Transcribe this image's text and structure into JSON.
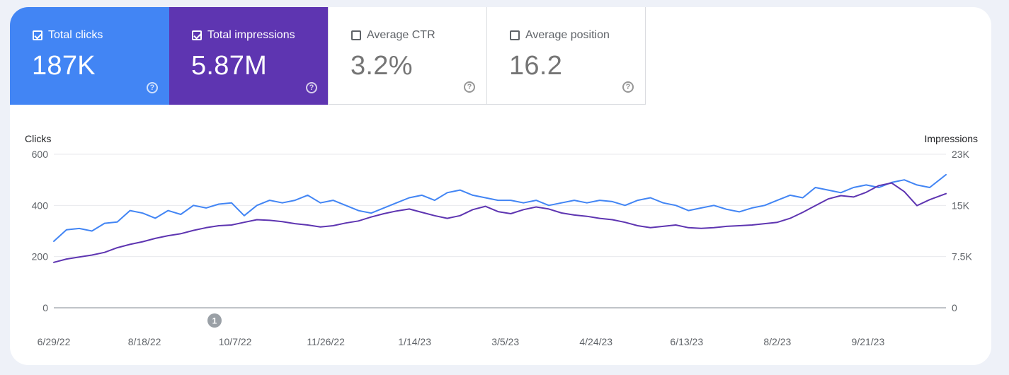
{
  "metrics": [
    {
      "label": "Total clicks",
      "value": "187K",
      "checked": true,
      "color": "#4285f4"
    },
    {
      "label": "Total impressions",
      "value": "5.87M",
      "checked": true,
      "color": "#5e35b1"
    },
    {
      "label": "Average CTR",
      "value": "3.2%",
      "checked": false
    },
    {
      "label": "Average position",
      "value": "16.2",
      "checked": false
    }
  ],
  "help_icon_glyph": "?",
  "annotation_marker": "1",
  "chart_data": {
    "type": "line",
    "ylabel": "Clicks",
    "y2label": "Impressions",
    "ylim": [
      0,
      600
    ],
    "y2lim": [
      0,
      23000
    ],
    "yticks": [
      "0",
      "200",
      "400",
      "600"
    ],
    "y2ticks": [
      "0",
      "7.5K",
      "15K",
      "23K"
    ],
    "x_tick_labels": [
      "6/29/22",
      "8/18/22",
      "10/7/22",
      "11/26/22",
      "1/14/23",
      "3/5/23",
      "4/24/23",
      "6/13/23",
      "8/2/23",
      "9/21/23"
    ],
    "x_range": [
      "6/29/22",
      "11/3/23"
    ],
    "series": [
      {
        "name": "Clicks",
        "axis": "left",
        "color": "#4285f4",
        "x": [
          "6/29/22",
          "7/6/22",
          "7/13/22",
          "7/20/22",
          "7/27/22",
          "8/3/22",
          "8/10/22",
          "8/17/22",
          "8/24/22",
          "8/31/22",
          "9/7/22",
          "9/14/22",
          "9/21/22",
          "9/28/22",
          "10/5/22",
          "10/12/22",
          "10/19/22",
          "10/26/22",
          "11/2/22",
          "11/9/22",
          "11/16/22",
          "11/23/22",
          "11/30/22",
          "12/7/22",
          "12/14/22",
          "12/21/22",
          "12/28/22",
          "1/4/23",
          "1/11/23",
          "1/18/23",
          "1/25/23",
          "2/1/23",
          "2/8/23",
          "2/15/23",
          "2/22/23",
          "3/1/23",
          "3/8/23",
          "3/15/23",
          "3/22/23",
          "3/29/23",
          "4/5/23",
          "4/12/23",
          "4/19/23",
          "4/26/23",
          "5/3/23",
          "5/10/23",
          "5/17/23",
          "5/24/23",
          "5/31/23",
          "6/7/23",
          "6/14/23",
          "6/21/23",
          "6/28/23",
          "7/5/23",
          "7/12/23",
          "7/19/23",
          "7/26/23",
          "8/2/23",
          "8/9/23",
          "8/16/23",
          "8/23/23",
          "8/30/23",
          "9/6/23",
          "9/13/23",
          "9/20/23",
          "9/27/23",
          "10/4/23",
          "10/11/23",
          "10/18/23",
          "10/25/23",
          "11/3/23"
        ],
        "values": [
          260,
          305,
          310,
          300,
          330,
          335,
          380,
          370,
          350,
          380,
          365,
          400,
          390,
          405,
          410,
          360,
          400,
          420,
          410,
          420,
          440,
          410,
          420,
          400,
          380,
          370,
          390,
          410,
          430,
          440,
          420,
          450,
          460,
          440,
          430,
          420,
          420,
          410,
          420,
          400,
          410,
          420,
          410,
          420,
          415,
          400,
          420,
          430,
          410,
          400,
          380,
          390,
          400,
          385,
          375,
          390,
          400,
          420,
          440,
          430,
          470,
          460,
          450,
          470,
          480,
          470,
          490,
          500,
          480,
          470,
          520
        ]
      },
      {
        "name": "Impressions",
        "axis": "right",
        "color": "#5e35b1",
        "x": [
          "6/29/22",
          "7/6/22",
          "7/13/22",
          "7/20/22",
          "7/27/22",
          "8/3/22",
          "8/10/22",
          "8/17/22",
          "8/24/22",
          "8/31/22",
          "9/7/22",
          "9/14/22",
          "9/21/22",
          "9/28/22",
          "10/5/22",
          "10/12/22",
          "10/19/22",
          "10/26/22",
          "11/2/22",
          "11/9/22",
          "11/16/22",
          "11/23/22",
          "11/30/22",
          "12/7/22",
          "12/14/22",
          "12/21/22",
          "12/28/22",
          "1/4/23",
          "1/11/23",
          "1/18/23",
          "1/25/23",
          "2/1/23",
          "2/8/23",
          "2/15/23",
          "2/22/23",
          "3/1/23",
          "3/8/23",
          "3/15/23",
          "3/22/23",
          "3/29/23",
          "4/5/23",
          "4/12/23",
          "4/19/23",
          "4/26/23",
          "5/3/23",
          "5/10/23",
          "5/17/23",
          "5/24/23",
          "5/31/23",
          "6/7/23",
          "6/14/23",
          "6/21/23",
          "6/28/23",
          "7/5/23",
          "7/12/23",
          "7/19/23",
          "7/26/23",
          "8/2/23",
          "8/9/23",
          "8/16/23",
          "8/23/23",
          "8/30/23",
          "9/6/23",
          "9/13/23",
          "9/20/23",
          "9/27/23",
          "10/4/23",
          "10/11/23",
          "10/18/23",
          "10/25/23",
          "11/3/23"
        ],
        "values": [
          6800,
          7300,
          7600,
          7900,
          8300,
          9000,
          9500,
          9900,
          10400,
          10800,
          11100,
          11600,
          12000,
          12300,
          12400,
          12800,
          13200,
          13100,
          12900,
          12600,
          12400,
          12100,
          12300,
          12700,
          13000,
          13600,
          14100,
          14500,
          14800,
          14300,
          13800,
          13400,
          13800,
          14700,
          15200,
          14400,
          14100,
          14700,
          15100,
          14800,
          14200,
          13900,
          13700,
          13400,
          13200,
          12800,
          12300,
          12000,
          12200,
          12400,
          12000,
          11900,
          12000,
          12200,
          12300,
          12400,
          12600,
          12800,
          13400,
          14300,
          15300,
          16300,
          16800,
          16600,
          17300,
          18300,
          18700,
          17400,
          15300,
          16200,
          17100
        ]
      }
    ],
    "grid": true,
    "legend": "none"
  }
}
